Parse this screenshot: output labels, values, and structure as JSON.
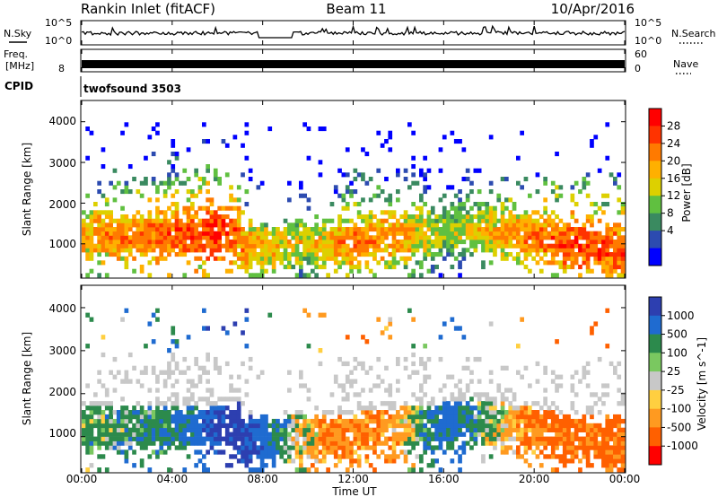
{
  "header": {
    "station": "Rankin Inlet (fitACF)",
    "beam": "Beam 11",
    "date": "10/Apr/2016"
  },
  "nsky_panel": {
    "left_label": "N.Sky",
    "right_label": "N.Search",
    "left_ticks": [
      "10^5",
      "10^0"
    ],
    "right_ticks": [
      "10^5",
      "10^0"
    ]
  },
  "freq_panel": {
    "left_label_line1": "Freq.",
    "left_label_line2": "[MHz]",
    "right_label": "Nave",
    "left_ticks": [
      "8"
    ],
    "right_ticks": [
      "60",
      "0"
    ]
  },
  "cpid_panel": {
    "label": "CPID",
    "value": "twofsound 3503"
  },
  "chart_data": [
    {
      "type": "heatmap",
      "title": "",
      "quantity": "Power",
      "colorbar_label": "Power [dB]",
      "colorbar_ticks": [
        "28",
        "24",
        "20",
        "16",
        "12",
        "8",
        "4"
      ],
      "colorbar_colors": [
        "#ff0000",
        "#ff3300",
        "#ff7a00",
        "#ffb000",
        "#ddd000",
        "#60c040",
        "#3a8a60",
        "#2c4bb0",
        "#0000ff"
      ],
      "ylabel": "Slant Range [km]",
      "yticks": [
        "4000",
        "3000",
        "2000",
        "1000"
      ],
      "ylim": [
        180,
        4500
      ],
      "xlim_hours": [
        0,
        24
      ],
      "intensity_profile_dB": [
        {
          "t": 0,
          "v": 20
        },
        {
          "t": 2,
          "v": 22
        },
        {
          "t": 4,
          "v": 24
        },
        {
          "t": 6,
          "v": 27
        },
        {
          "t": 8,
          "v": 18
        },
        {
          "t": 10,
          "v": 16
        },
        {
          "t": 12,
          "v": 22
        },
        {
          "t": 14,
          "v": 21
        },
        {
          "t": 16,
          "v": 14
        },
        {
          "t": 18,
          "v": 18
        },
        {
          "t": 20,
          "v": 22
        },
        {
          "t": 22,
          "v": 26
        },
        {
          "t": 24,
          "v": 24
        }
      ]
    },
    {
      "type": "heatmap",
      "title": "",
      "quantity": "Velocity",
      "colorbar_label": "Velocity [m s^-1]",
      "colorbar_ticks": [
        "1000",
        "500",
        "100",
        "25",
        "-25",
        "-100",
        "-500",
        "-1000"
      ],
      "colorbar_colors": [
        "#2d3fb0",
        "#1f6bd0",
        "#2c8a4c",
        "#7ac860",
        "#c8c8c8",
        "#ffcf40",
        "#ff9a20",
        "#ff6000",
        "#ff0000"
      ],
      "ylabel": "Slant Range [km]",
      "yticks": [
        "4000",
        "3000",
        "2000",
        "1000"
      ],
      "ylim": [
        180,
        4500
      ],
      "xlabel": "Time UT",
      "xticks": [
        "00:00",
        "04:00",
        "08:00",
        "12:00",
        "16:00",
        "20:00",
        "00:00"
      ],
      "xlim_hours": [
        0,
        24
      ],
      "velocity_profile_ms": [
        {
          "t": 0,
          "v": 100
        },
        {
          "t": 4,
          "v": 250
        },
        {
          "t": 7,
          "v": 900
        },
        {
          "t": 9,
          "v": 150
        },
        {
          "t": 11,
          "v": -300
        },
        {
          "t": 14,
          "v": -200
        },
        {
          "t": 16,
          "v": 500
        },
        {
          "t": 19,
          "v": -150
        },
        {
          "t": 21,
          "v": -400
        },
        {
          "t": 24,
          "v": -350
        }
      ]
    }
  ]
}
